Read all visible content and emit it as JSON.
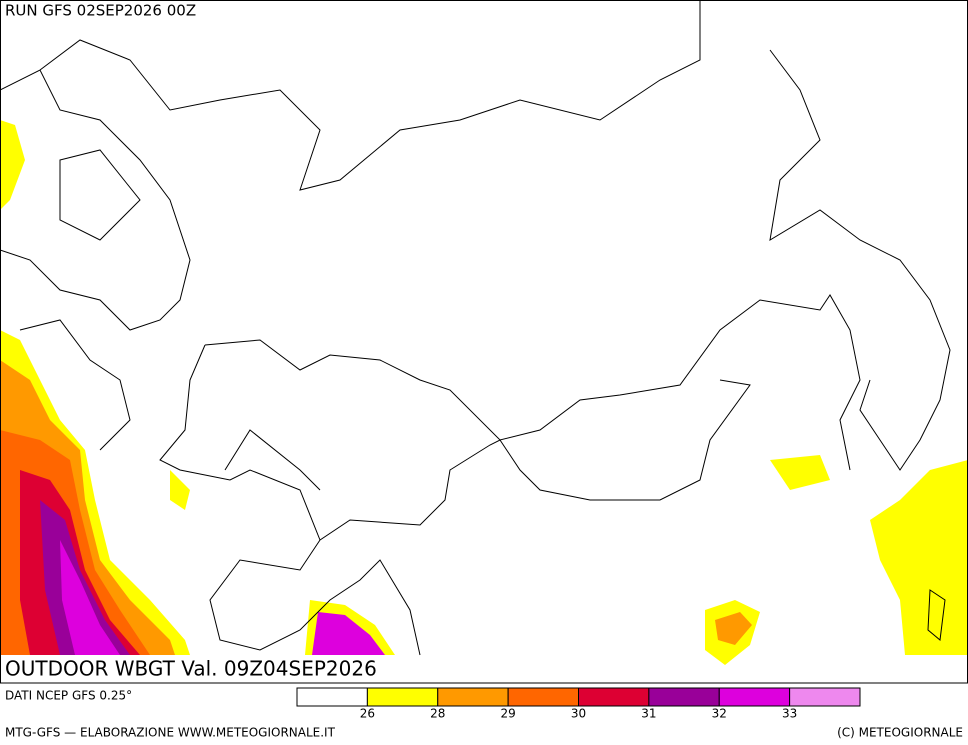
{
  "header": {
    "run": "RUN GFS 02SEP2026 00Z"
  },
  "map": {
    "title": "OUTDOOR WBGT Val. 09Z04SEP2026"
  },
  "legend": {
    "source": "DATI NCEP GFS 0.25°",
    "colors": [
      "#ffffff",
      "#ffff00",
      "#ff9900",
      "#ff6600",
      "#dd0033",
      "#990099",
      "#dd00dd",
      "#ee88ee"
    ],
    "ticks": [
      26,
      28,
      29,
      30,
      31,
      32,
      33
    ]
  },
  "footer": {
    "left": "MTG-GFS — ELABORAZIONE WWW.METEOGIORNALE.IT",
    "right": "(C) METEOGIORNALE"
  }
}
